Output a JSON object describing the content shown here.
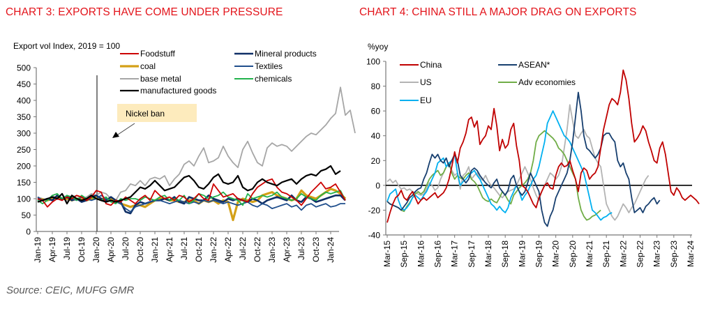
{
  "titles": {
    "chart3": "CHART 3: EXPORTS HAVE COME UNDER PRESSURE",
    "chart4": "CHART 4: CHINA STILL A MAJOR DRAG ON EXPORTS"
  },
  "source": "Source: CEIC, MUFG GMR",
  "chart_data": [
    {
      "type": "line",
      "title": "CHART 3: EXPORTS HAVE COME UNDER PRESSURE",
      "ylabel": "Export vol Index, 2019 = 100",
      "xlabel": "",
      "ylim": [
        0,
        500
      ],
      "yticks": [
        0,
        50,
        100,
        150,
        200,
        250,
        300,
        350,
        400,
        450,
        500
      ],
      "xtick_labels": [
        "Jan-19",
        "Apr-19",
        "Jul-19",
        "Oct-19",
        "Jan-20",
        "Apr-20",
        "Jul-20",
        "Oct-20",
        "Jan-21",
        "Apr-21",
        "Jul-21",
        "Oct-21",
        "Jan-22",
        "Apr-22",
        "Jul-22",
        "Oct-22",
        "Jan-23",
        "Apr-23",
        "Jul-23",
        "Oct-23",
        "Jan-24"
      ],
      "x_start": "Jan-19",
      "frequency": "monthly",
      "legend_position": "top",
      "annotation": {
        "text": "Nickel ban",
        "at": "Jan-20"
      },
      "series": [
        {
          "name": "Foodstuff",
          "color": "#cc0000",
          "values": [
            100,
            95,
            75,
            90,
            100,
            95,
            105,
            100,
            110,
            105,
            95,
            105,
            125,
            120,
            85,
            80,
            95,
            90,
            105,
            95,
            85,
            100,
            110,
            95,
            125,
            110,
            100,
            105,
            95,
            110,
            105,
            90,
            100,
            115,
            100,
            95,
            145,
            125,
            105,
            110,
            115,
            100,
            95,
            90,
            115,
            135,
            145,
            155,
            160,
            135,
            120,
            115,
            105,
            95,
            80,
            100,
            120,
            135,
            150,
            130,
            135,
            145,
            120,
            95
          ],
          "note": "approximate"
        },
        {
          "name": "Mineral products",
          "color": "#0f2f66",
          "values": [
            100,
            95,
            100,
            95,
            110,
            100,
            105,
            95,
            100,
            90,
            95,
            105,
            110,
            100,
            95,
            105,
            95,
            90,
            60,
            55,
            80,
            90,
            85,
            90,
            95,
            95,
            100,
            95,
            105,
            90,
            85,
            105,
            100,
            95,
            95,
            110,
            100,
            95,
            90,
            100,
            95,
            100,
            95,
            90,
            100,
            95,
            85,
            95,
            100,
            105,
            100,
            95,
            110,
            95,
            90,
            105,
            100,
            90,
            95,
            100,
            105,
            110,
            110,
            95
          ],
          "note": "approximate"
        },
        {
          "name": "coal",
          "color": "#d4a017",
          "values": [
            100,
            98,
            95,
            100,
            105,
            100,
            100,
            95,
            100,
            98,
            95,
            100,
            105,
            100,
            95,
            100,
            95,
            85,
            80,
            75,
            80,
            80,
            75,
            85,
            95,
            100,
            100,
            95,
            95,
            90,
            90,
            95,
            95,
            85,
            95,
            90,
            95,
            85,
            95,
            90,
            35,
            90,
            100,
            95,
            90,
            95,
            110,
            115,
            120,
            110,
            105,
            100,
            95,
            100,
            125,
            110,
            105,
            100,
            110,
            120,
            130,
            125,
            115,
            100
          ],
          "note": "approximate"
        },
        {
          "name": "Textiles",
          "color": "#1f4e8c",
          "values": [
            105,
            95,
            100,
            105,
            100,
            95,
            110,
            100,
            95,
            105,
            100,
            95,
            100,
            110,
            100,
            95,
            90,
            85,
            70,
            60,
            75,
            80,
            85,
            90,
            95,
            95,
            90,
            85,
            90,
            95,
            90,
            85,
            90,
            85,
            95,
            90,
            95,
            90,
            85,
            90,
            85,
            80,
            85,
            90,
            80,
            75,
            85,
            80,
            70,
            75,
            80,
            85,
            75,
            80,
            65,
            80,
            85,
            75,
            80,
            85,
            75,
            78,
            85,
            85
          ],
          "note": "approximate"
        },
        {
          "name": "base metal",
          "color": "#a6a6a6",
          "values": [
            105,
            100,
            95,
            110,
            100,
            115,
            95,
            105,
            110,
            100,
            105,
            115,
            110,
            120,
            115,
            100,
            95,
            120,
            125,
            145,
            140,
            155,
            140,
            160,
            165,
            160,
            170,
            140,
            160,
            175,
            205,
            215,
            200,
            230,
            255,
            210,
            215,
            225,
            260,
            230,
            210,
            195,
            250,
            275,
            240,
            210,
            200,
            255,
            270,
            260,
            265,
            260,
            245,
            260,
            275,
            290,
            300,
            295,
            310,
            325,
            345,
            360,
            440,
            355,
            370,
            300
          ],
          "note": "approximate"
        },
        {
          "name": "chemicals",
          "color": "#22b24c",
          "values": [
            95,
            85,
            95,
            110,
            115,
            100,
            110,
            105,
            95,
            110,
            100,
            105,
            100,
            95,
            105,
            90,
            85,
            100,
            95,
            100,
            100,
            95,
            105,
            100,
            95,
            105,
            110,
            95,
            100,
            95,
            110,
            85,
            95,
            115,
            110,
            100,
            105,
            110,
            120,
            105,
            100,
            95,
            80,
            115,
            100,
            105,
            110,
            105,
            110,
            120,
            105,
            100,
            95,
            100,
            115,
            105,
            100,
            95,
            110,
            120,
            115,
            120,
            125,
            95
          ],
          "note": "approximate"
        },
        {
          "name": "manufactured goods",
          "color": "#000000",
          "values": [
            90,
            95,
            100,
            105,
            100,
            115,
            85,
            110,
            100,
            95,
            100,
            110,
            100,
            95,
            90,
            95,
            90,
            95,
            100,
            105,
            120,
            135,
            130,
            140,
            155,
            140,
            125,
            130,
            135,
            150,
            165,
            170,
            155,
            135,
            130,
            145,
            165,
            175,
            150,
            145,
            150,
            170,
            135,
            125,
            130,
            150,
            160,
            150,
            145,
            140,
            150,
            155,
            160,
            145,
            160,
            170,
            175,
            170,
            185,
            190,
            200,
            175,
            185
          ],
          "note": "approximate"
        }
      ]
    },
    {
      "type": "line",
      "title": "CHART 4: CHINA STILL A MAJOR DRAG ON EXPORTS",
      "ylabel": "%yoy",
      "xlabel": "",
      "ylim": [
        -40,
        100
      ],
      "yticks": [
        -40,
        -20,
        0,
        20,
        40,
        60,
        80,
        100
      ],
      "xtick_labels": [
        "Mar-15",
        "Sep-15",
        "Mar-16",
        "Sep-16",
        "Mar-17",
        "Sep-17",
        "Mar-18",
        "Sep-18",
        "Mar-19",
        "Sep-19",
        "Mar-20",
        "Sep-20",
        "Mar-21",
        "Sep-21",
        "Mar-22",
        "Sep-22",
        "Mar-23",
        "Sep-23",
        "Mar-24"
      ],
      "x_start": "Mar-15",
      "frequency": "monthly",
      "reference_line": 0,
      "legend_position": "top-left",
      "series": [
        {
          "name": "China",
          "color": "#c00000",
          "values": [
            -30,
            -22,
            -15,
            -10,
            -8,
            -4,
            -10,
            -12,
            -8,
            -5,
            -10,
            -15,
            -12,
            -10,
            -12,
            -10,
            -8,
            -6,
            -10,
            -8,
            -6,
            -2,
            5,
            15,
            27,
            18,
            30,
            35,
            42,
            53,
            55,
            47,
            52,
            33,
            37,
            40,
            48,
            45,
            62,
            48,
            28,
            37,
            30,
            33,
            45,
            50,
            32,
            20,
            0,
            -2,
            -5,
            -10,
            -15,
            -18,
            -10,
            -5,
            0,
            2,
            -2,
            -3,
            8,
            15,
            18,
            15,
            16,
            20,
            12,
            5,
            -5,
            10,
            14,
            12,
            5,
            8,
            10,
            15,
            30,
            45,
            55,
            65,
            70,
            68,
            65,
            75,
            93,
            85,
            70,
            50,
            35,
            38,
            42,
            48,
            44,
            35,
            28,
            20,
            18,
            30,
            35,
            25,
            10,
            -5,
            -8,
            -2,
            -5,
            -10,
            -12,
            -10,
            -8,
            -10,
            -12,
            -15
          ],
          "note": "approximate"
        },
        {
          "name": "ASEAN*",
          "color": "#173f6f",
          "values": [
            -13,
            -15,
            -16,
            -17,
            -18,
            -20,
            -17,
            -14,
            -10,
            -8,
            -5,
            -3,
            -2,
            5,
            10,
            18,
            25,
            22,
            25,
            20,
            18,
            22,
            15,
            20,
            25,
            20,
            8,
            5,
            2,
            5,
            12,
            14,
            12,
            8,
            5,
            2,
            0,
            -2,
            2,
            5,
            -2,
            -5,
            -8,
            -4,
            5,
            8,
            0,
            -5,
            -8,
            -5,
            2,
            10,
            5,
            0,
            -5,
            -20,
            -30,
            -33,
            -25,
            -20,
            -10,
            -5,
            0,
            5,
            10,
            20,
            35,
            55,
            75,
            60,
            40,
            30,
            28,
            25,
            22,
            25,
            30,
            40,
            42,
            42,
            38,
            35,
            20,
            15,
            18,
            10,
            5,
            -10,
            -22,
            -20,
            -18,
            -22,
            -17,
            -15,
            -12,
            -10,
            -15,
            -12
          ],
          "note": "approximate"
        },
        {
          "name": "US",
          "color": "#b3b3b3",
          "values": [
            3,
            5,
            2,
            4,
            0,
            -3,
            -2,
            -4,
            -3,
            -5,
            -6,
            -7,
            -8,
            -7,
            -3,
            2,
            0,
            -4,
            -2,
            5,
            10,
            15,
            18,
            12,
            8,
            10,
            -3,
            8,
            10,
            15,
            5,
            8,
            10,
            6,
            4,
            8,
            3,
            0,
            -2,
            -5,
            -8,
            -10,
            -7,
            -5,
            -4,
            -3,
            0,
            5,
            10,
            15,
            10,
            5,
            -2,
            -8,
            -12,
            -5,
            0,
            5,
            10,
            8,
            5,
            8,
            15,
            30,
            45,
            65,
            52,
            40,
            38,
            42,
            45,
            40,
            38,
            30,
            22,
            18,
            15,
            0,
            -15,
            -20,
            -25,
            -28,
            -25,
            -20,
            -15,
            -18,
            -22,
            -18,
            -15,
            -10,
            -5,
            0,
            5,
            8
          ],
          "note": "approximate"
        },
        {
          "name": "Adv economies",
          "color": "#70ad47",
          "values": [
            -13,
            -15,
            -16,
            -17,
            -18,
            -20,
            -21,
            -17,
            -14,
            -10,
            -7,
            -5,
            -7,
            -5,
            0,
            5,
            8,
            10,
            12,
            8,
            10,
            15,
            18,
            10,
            5,
            8,
            6,
            5,
            8,
            10,
            5,
            3,
            0,
            -5,
            -10,
            -12,
            -13,
            -11,
            -13,
            -14,
            -10,
            -5,
            -8,
            -12,
            -15,
            -8,
            -5,
            -2,
            0,
            2,
            5,
            10,
            20,
            35,
            40,
            42,
            44,
            42,
            40,
            38,
            35,
            30,
            28,
            25,
            20,
            15,
            10,
            5,
            -10,
            -20,
            -25,
            -28,
            -27,
            -25,
            -24,
            -22,
            -20
          ],
          "note": "approximate"
        },
        {
          "name": "EU",
          "color": "#00b0f0",
          "values": [
            -13,
            -7,
            -5,
            -3,
            -12,
            -18,
            -20,
            -18,
            -15,
            -10,
            -8,
            -10,
            -12,
            -8,
            -5,
            0,
            5,
            10,
            18,
            20,
            22,
            15,
            18,
            20,
            25,
            10,
            0,
            3,
            5,
            8,
            10,
            12,
            8,
            5,
            0,
            -5,
            -10,
            -15,
            -17,
            -20,
            -17,
            -20,
            -22,
            -18,
            -10,
            -5,
            0,
            -5,
            -12,
            -8,
            -5,
            0,
            5,
            8,
            15,
            25,
            35,
            50,
            55,
            60,
            55,
            50,
            45,
            40,
            38,
            35,
            30,
            25,
            20,
            15,
            10,
            0,
            -10,
            -20,
            -22,
            -25,
            -28,
            -26,
            -25,
            -23,
            -22
          ],
          "note": "approximate"
        }
      ]
    }
  ]
}
